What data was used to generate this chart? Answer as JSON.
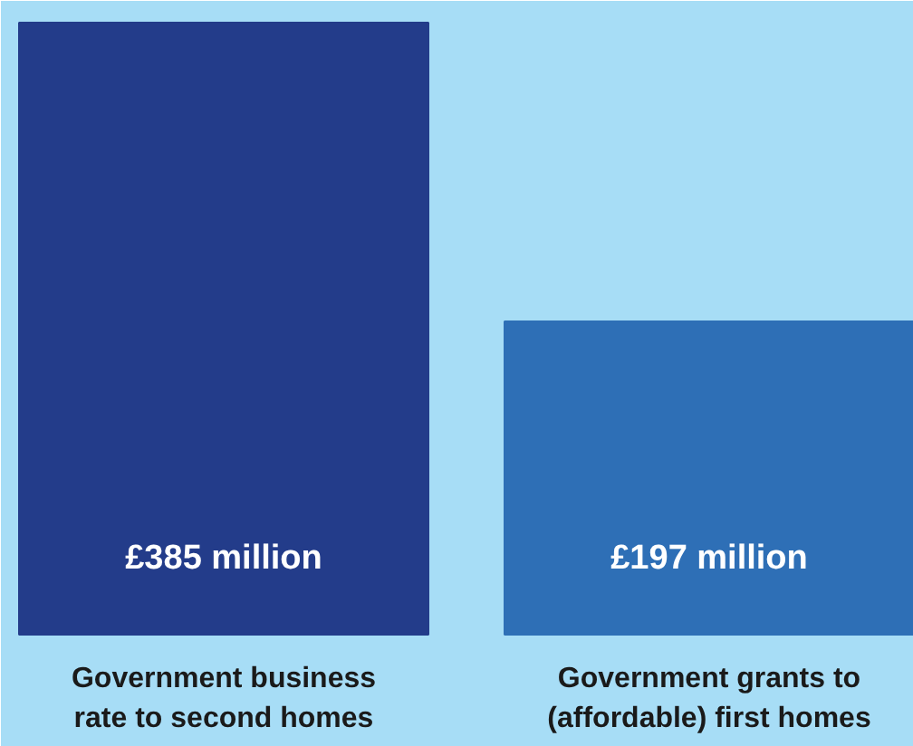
{
  "chart_data": {
    "type": "bar",
    "categories": [
      "Government business\nrate to second homes",
      "Government grants to\n(affordable) first homes"
    ],
    "values": [
      385,
      197
    ],
    "colors": [
      "#233c8a",
      "#2e6fb6"
    ],
    "value_labels": [
      "£385 million",
      "£197 million"
    ]
  }
}
